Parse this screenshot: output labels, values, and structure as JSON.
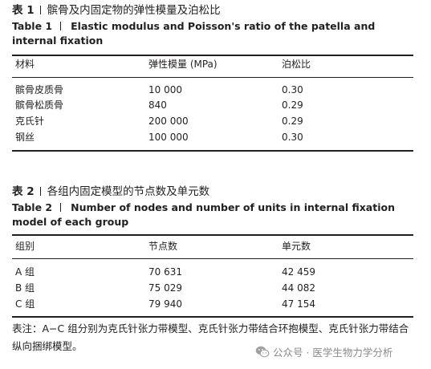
{
  "table1": {
    "label_cn": "表 1",
    "title_cn": "髌骨及内固定物的弹性模量及泊松比",
    "label_en": "Table 1",
    "title_en": "Elastic modulus and Poisson's ratio of the patella and internal fixation",
    "headers": [
      "材料",
      "弹性模量 (MPa)",
      "泊松比"
    ],
    "rows": [
      [
        "髌骨皮质骨",
        "10 000",
        "0.30"
      ],
      [
        "髌骨松质骨",
        "840",
        "0.29"
      ],
      [
        "克氏针",
        "200 000",
        "0.29"
      ],
      [
        "钢丝",
        "100 000",
        "0.30"
      ]
    ]
  },
  "table2": {
    "label_cn": "表 2",
    "title_cn": "各组内固定模型的节点数及单元数",
    "label_en": "Table 2",
    "title_en": "Number of nodes and number of units in internal fixation model of each group",
    "headers": [
      "组别",
      "节点数",
      "单元数"
    ],
    "rows": [
      [
        "A 组",
        "70 631",
        "42 459"
      ],
      [
        "B 组",
        "75 029",
        "44 082"
      ],
      [
        "C 组",
        "79 940",
        "47 154"
      ]
    ]
  },
  "footnote": "表注：A−C 组分别为克氏针张力带模型、克氏针张力带结合环抱模型、克氏针张力带结合纵向捆绑模型。",
  "watermark": {
    "icon": "wechat-icon",
    "text": "公众号 · 医学生物力学分析"
  }
}
